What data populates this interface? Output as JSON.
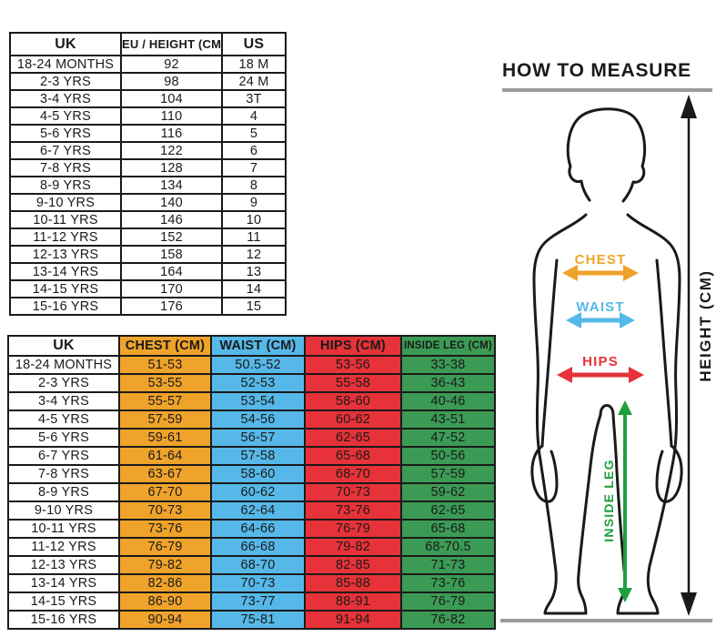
{
  "colors": {
    "orange": "#F0A32B",
    "blue": "#56B8E8",
    "red": "#E63238",
    "green": "#3B9B55",
    "arrow_green": "#1FA03C",
    "ink": "#1A1A1A",
    "gray": "#9B9B9B"
  },
  "how_to_measure": {
    "title": "HOW TO MEASURE",
    "labels": {
      "chest": "CHEST",
      "waist": "WAIST",
      "hips": "HIPS",
      "inside_leg": "INSIDE LEG",
      "height": "HEIGHT (CM)"
    }
  },
  "chart_data": [
    {
      "type": "table",
      "name": "size_table",
      "headers": [
        "UK",
        "EU / HEIGHT (CM)",
        "US"
      ],
      "col_colors": [
        "#FFFFFF",
        "#FFFFFF",
        "#FFFFFF"
      ],
      "rows": [
        [
          "18-24 MONTHS",
          "92",
          "18 M"
        ],
        [
          "2-3 YRS",
          "98",
          "24 M"
        ],
        [
          "3-4 YRS",
          "104",
          "3T"
        ],
        [
          "4-5 YRS",
          "110",
          "4"
        ],
        [
          "5-6 YRS",
          "116",
          "5"
        ],
        [
          "6-7 YRS",
          "122",
          "6"
        ],
        [
          "7-8 YRS",
          "128",
          "7"
        ],
        [
          "8-9 YRS",
          "134",
          "8"
        ],
        [
          "9-10 YRS",
          "140",
          "9"
        ],
        [
          "10-11 YRS",
          "146",
          "10"
        ],
        [
          "11-12 YRS",
          "152",
          "11"
        ],
        [
          "12-13 YRS",
          "158",
          "12"
        ],
        [
          "13-14 YRS",
          "164",
          "13"
        ],
        [
          "14-15 YRS",
          "170",
          "14"
        ],
        [
          "15-16 YRS",
          "176",
          "15"
        ]
      ]
    },
    {
      "type": "table",
      "name": "measurement_table",
      "headers": [
        "UK",
        "CHEST (CM)",
        "WAIST (CM)",
        "HIPS (CM)",
        "INSIDE LEG (CM)"
      ],
      "col_colors": [
        "#FFFFFF",
        "#F0A32B",
        "#56B8E8",
        "#E63238",
        "#3B9B55"
      ],
      "rows": [
        [
          "18-24 MONTHS",
          "51-53",
          "50.5-52",
          "53-56",
          "33-38"
        ],
        [
          "2-3 YRS",
          "53-55",
          "52-53",
          "55-58",
          "36-43"
        ],
        [
          "3-4 YRS",
          "55-57",
          "53-54",
          "58-60",
          "40-46"
        ],
        [
          "4-5 YRS",
          "57-59",
          "54-56",
          "60-62",
          "43-51"
        ],
        [
          "5-6 YRS",
          "59-61",
          "56-57",
          "62-65",
          "47-52"
        ],
        [
          "6-7 YRS",
          "61-64",
          "57-58",
          "65-68",
          "50-56"
        ],
        [
          "7-8 YRS",
          "63-67",
          "58-60",
          "68-70",
          "57-59"
        ],
        [
          "8-9 YRS",
          "67-70",
          "60-62",
          "70-73",
          "59-62"
        ],
        [
          "9-10 YRS",
          "70-73",
          "62-64",
          "73-76",
          "62-65"
        ],
        [
          "10-11 YRS",
          "73-76",
          "64-66",
          "76-79",
          "65-68"
        ],
        [
          "11-12 YRS",
          "76-79",
          "66-68",
          "79-82",
          "68-70.5"
        ],
        [
          "12-13 YRS",
          "79-82",
          "68-70",
          "82-85",
          "71-73"
        ],
        [
          "13-14 YRS",
          "82-86",
          "70-73",
          "85-88",
          "73-76"
        ],
        [
          "14-15 YRS",
          "86-90",
          "73-77",
          "88-91",
          "76-79"
        ],
        [
          "15-16 YRS",
          "90-94",
          "75-81",
          "91-94",
          "76-82"
        ]
      ]
    }
  ]
}
